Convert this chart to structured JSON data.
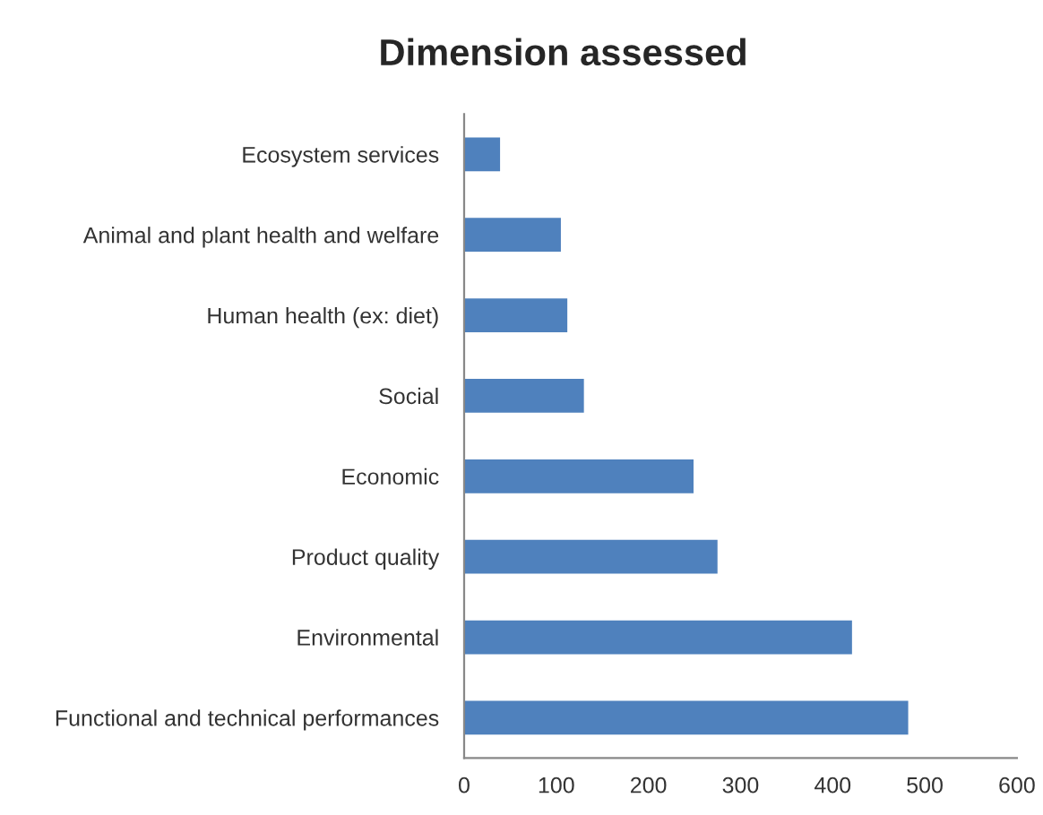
{
  "chart_data": {
    "type": "bar",
    "orientation": "horizontal",
    "title": "Dimension assessed",
    "categories": [
      "Ecosystem services",
      "Animal and plant health and welfare",
      "Human health (ex: diet)",
      "Social",
      "Economic",
      "Product quality",
      "Environmental",
      "Functional and technical performances"
    ],
    "values": [
      39,
      105,
      112,
      130,
      249,
      275,
      421,
      482
    ],
    "color": "#4f81bd",
    "xlim": [
      0,
      600
    ],
    "xticks": [
      0,
      100,
      200,
      300,
      400,
      500,
      600
    ],
    "grid": false,
    "legend": false
  }
}
